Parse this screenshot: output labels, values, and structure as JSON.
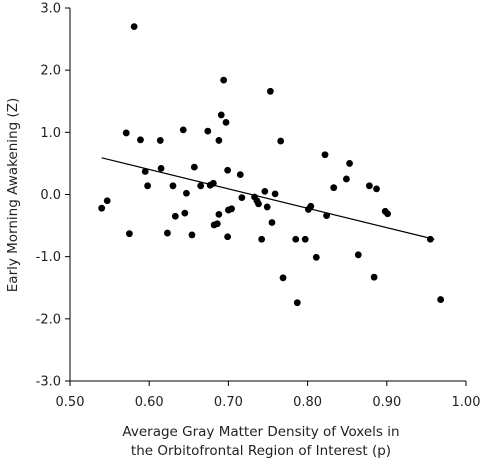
{
  "chart_data": {
    "type": "scatter",
    "xlabel": [
      "Average Gray Matter Density of Voxels in",
      "the Orbitofrontal Region of Interest (p)"
    ],
    "ylabel": "Early Morning Awakening (Z)",
    "xlim": [
      0.5,
      1.0
    ],
    "ylim": [
      -3.0,
      3.0
    ],
    "x_ticks": [
      0.5,
      0.6,
      0.7,
      0.8,
      0.9,
      1.0
    ],
    "x_tick_labels": [
      "0.50",
      "0.60",
      "0.70",
      "0.80",
      "0.90",
      "1.00"
    ],
    "y_ticks": [
      3.0,
      2.0,
      1.0,
      0.0,
      -1.0,
      -2.0,
      -3.0
    ],
    "y_tick_labels": [
      "3.0",
      "2.0",
      "1.0",
      "0.0",
      "-1.0",
      "-2.0",
      "-3.0"
    ],
    "grid": false,
    "legend": "none",
    "point_color": "#000000",
    "trendline": {
      "x": [
        0.54,
        0.96
      ],
      "y": [
        0.59,
        -0.72
      ],
      "color": "#000000"
    },
    "points": [
      {
        "x": 0.54,
        "y": -0.22
      },
      {
        "x": 0.547,
        "y": -0.1
      },
      {
        "x": 0.571,
        "y": 0.99
      },
      {
        "x": 0.575,
        "y": -0.63
      },
      {
        "x": 0.581,
        "y": 2.7
      },
      {
        "x": 0.589,
        "y": 0.88
      },
      {
        "x": 0.595,
        "y": 0.37
      },
      {
        "x": 0.598,
        "y": 0.14
      },
      {
        "x": 0.614,
        "y": 0.87
      },
      {
        "x": 0.615,
        "y": 0.42
      },
      {
        "x": 0.623,
        "y": -0.62
      },
      {
        "x": 0.63,
        "y": 0.14
      },
      {
        "x": 0.633,
        "y": -0.35
      },
      {
        "x": 0.643,
        "y": 1.04
      },
      {
        "x": 0.645,
        "y": -0.3
      },
      {
        "x": 0.647,
        "y": 0.02
      },
      {
        "x": 0.654,
        "y": -0.65
      },
      {
        "x": 0.657,
        "y": 0.44
      },
      {
        "x": 0.665,
        "y": 0.14
      },
      {
        "x": 0.674,
        "y": 1.02
      },
      {
        "x": 0.677,
        "y": 0.15
      },
      {
        "x": 0.681,
        "y": 0.18
      },
      {
        "x": 0.682,
        "y": -0.49
      },
      {
        "x": 0.686,
        "y": -0.47
      },
      {
        "x": 0.688,
        "y": -0.32
      },
      {
        "x": 0.688,
        "y": 0.87
      },
      {
        "x": 0.691,
        "y": 1.28
      },
      {
        "x": 0.694,
        "y": 1.84
      },
      {
        "x": 0.697,
        "y": 1.16
      },
      {
        "x": 0.699,
        "y": -0.68
      },
      {
        "x": 0.699,
        "y": 0.39
      },
      {
        "x": 0.7,
        "y": -0.25
      },
      {
        "x": 0.704,
        "y": -0.23
      },
      {
        "x": 0.715,
        "y": 0.32
      },
      {
        "x": 0.717,
        "y": -0.05
      },
      {
        "x": 0.733,
        "y": -0.04
      },
      {
        "x": 0.736,
        "y": -0.1
      },
      {
        "x": 0.738,
        "y": -0.15
      },
      {
        "x": 0.742,
        "y": -0.72
      },
      {
        "x": 0.746,
        "y": 0.05
      },
      {
        "x": 0.749,
        "y": -0.2
      },
      {
        "x": 0.753,
        "y": 1.66
      },
      {
        "x": 0.755,
        "y": -0.45
      },
      {
        "x": 0.759,
        "y": 0.01
      },
      {
        "x": 0.766,
        "y": 0.86
      },
      {
        "x": 0.769,
        "y": -1.34
      },
      {
        "x": 0.785,
        "y": -0.72
      },
      {
        "x": 0.787,
        "y": -1.74
      },
      {
        "x": 0.797,
        "y": -0.72
      },
      {
        "x": 0.801,
        "y": -0.24
      },
      {
        "x": 0.804,
        "y": -0.19
      },
      {
        "x": 0.811,
        "y": -1.01
      },
      {
        "x": 0.822,
        "y": 0.64
      },
      {
        "x": 0.824,
        "y": -0.34
      },
      {
        "x": 0.833,
        "y": 0.11
      },
      {
        "x": 0.849,
        "y": 0.25
      },
      {
        "x": 0.853,
        "y": 0.5
      },
      {
        "x": 0.864,
        "y": -0.97
      },
      {
        "x": 0.878,
        "y": 0.14
      },
      {
        "x": 0.884,
        "y": -1.33
      },
      {
        "x": 0.887,
        "y": 0.09
      },
      {
        "x": 0.898,
        "y": -0.27
      },
      {
        "x": 0.901,
        "y": -0.31
      },
      {
        "x": 0.955,
        "y": -0.72
      },
      {
        "x": 0.968,
        "y": -1.69
      }
    ]
  }
}
